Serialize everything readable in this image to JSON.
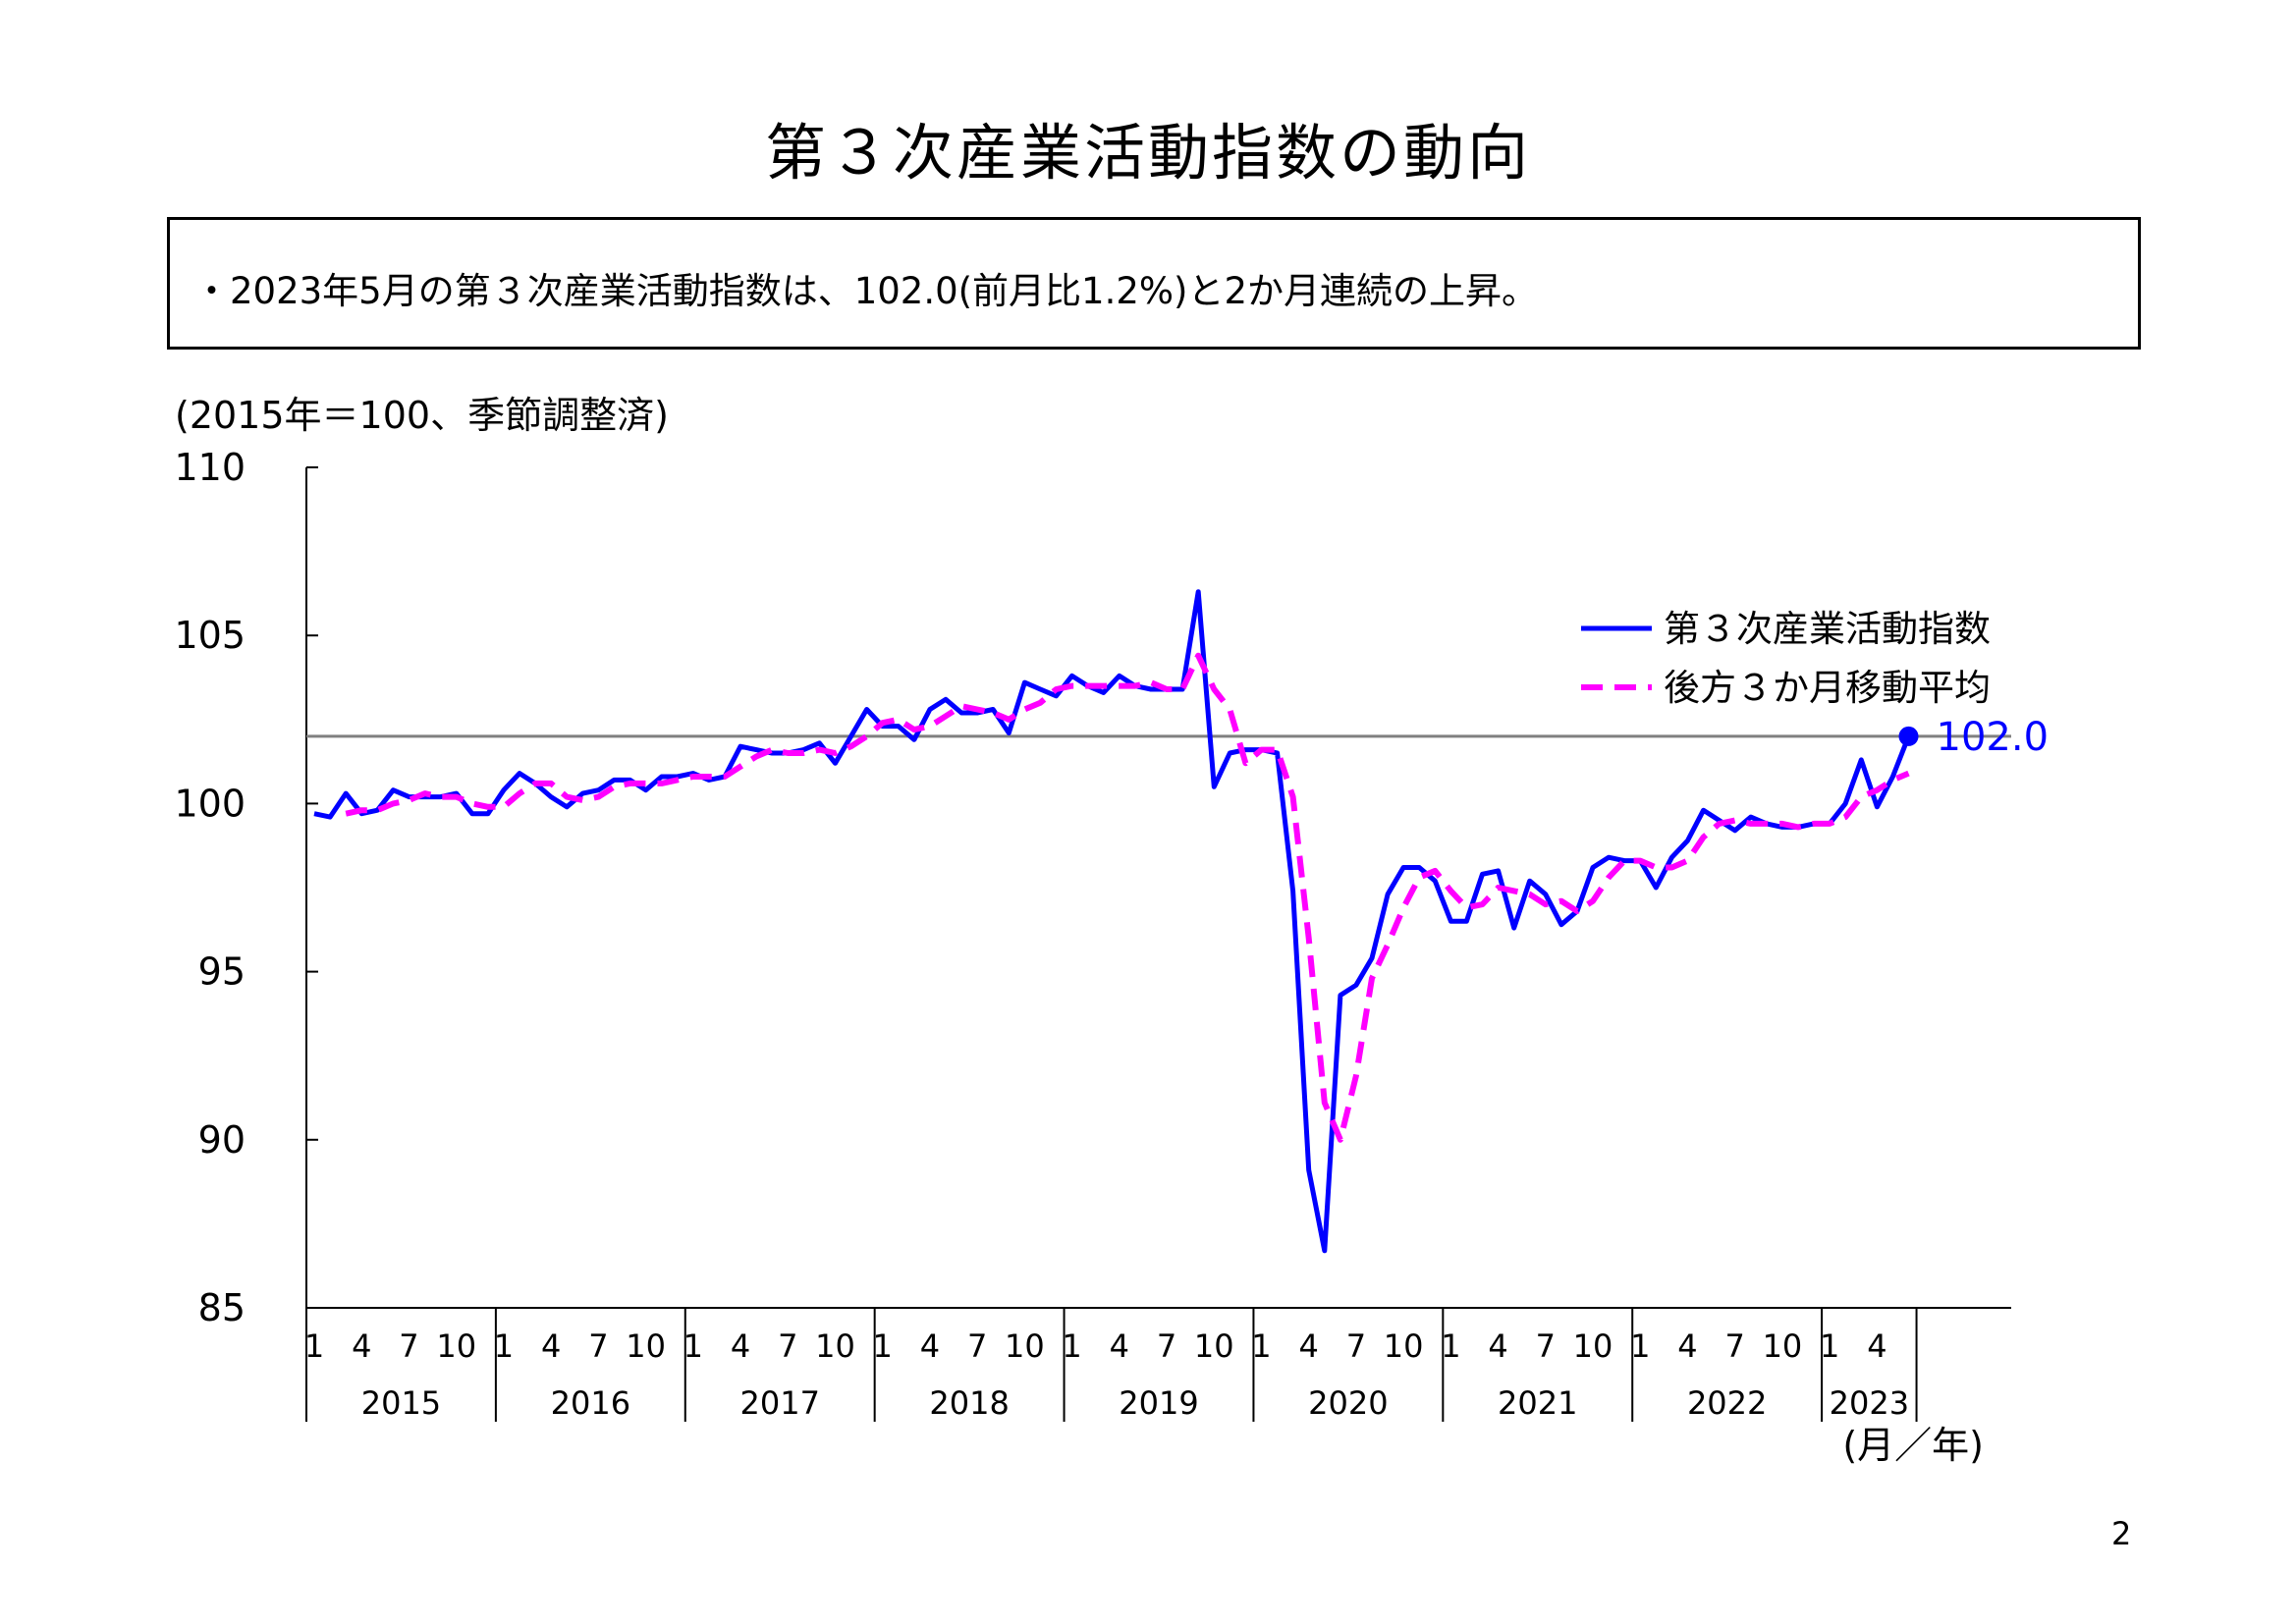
{
  "page": {
    "title": "第３次産業活動指数の動向",
    "summary": "・2023年5月の第３次産業活動指数は、102.0(前月比1.2%)と2か月連続の上昇。",
    "unit_note": "(2015年＝100、季節調整済)",
    "page_number": "2"
  },
  "chart_data": {
    "type": "line",
    "title": "",
    "xlabel": "(月／年)",
    "ylabel": "",
    "ylim": [
      85,
      110
    ],
    "yticks": [
      85,
      90,
      95,
      100,
      105,
      110
    ],
    "grid": false,
    "legend_position": "top-right",
    "x_start": "2015-01",
    "month_ticks": [
      1,
      4,
      7,
      10
    ],
    "years": [
      "2015",
      "2016",
      "2017",
      "2018",
      "2019",
      "2020",
      "2021",
      "2022",
      "2023"
    ],
    "reference_line": {
      "value": 102.0,
      "label": "102.0",
      "color": "#808080"
    },
    "latest_point": {
      "label": "102.0",
      "color": "#0000ff"
    },
    "series": [
      {
        "name": "第３次産業活動指数",
        "color": "#0000ff",
        "style": "solid",
        "values": [
          99.7,
          99.6,
          100.3,
          99.7,
          99.8,
          100.4,
          100.2,
          100.2,
          100.2,
          100.3,
          99.7,
          99.7,
          100.4,
          100.9,
          100.6,
          100.2,
          99.9,
          100.3,
          100.4,
          100.7,
          100.7,
          100.4,
          100.8,
          100.8,
          100.9,
          100.7,
          100.8,
          101.7,
          101.6,
          101.5,
          101.5,
          101.6,
          101.8,
          101.2,
          102.0,
          102.8,
          102.3,
          102.3,
          101.9,
          102.8,
          103.1,
          102.7,
          102.7,
          102.8,
          102.1,
          103.6,
          103.4,
          103.2,
          103.8,
          103.5,
          103.3,
          103.8,
          103.5,
          103.4,
          103.4,
          103.4,
          106.3,
          100.5,
          101.5,
          101.6,
          101.6,
          101.5,
          97.4,
          89.1,
          86.7,
          94.3,
          94.6,
          95.4,
          97.3,
          98.1,
          98.1,
          97.7,
          96.5,
          96.5,
          97.9,
          98.0,
          96.3,
          97.7,
          97.3,
          96.4,
          96.8,
          98.1,
          98.4,
          98.3,
          98.3,
          97.5,
          98.4,
          98.9,
          99.8,
          99.5,
          99.2,
          99.6,
          99.4,
          99.3,
          99.3,
          99.4,
          99.4,
          100.0,
          101.3,
          99.9,
          100.8,
          102.0
        ]
      },
      {
        "name": "後方３か月移動平均",
        "color": "#ff00ff",
        "style": "dashed",
        "values": [
          null,
          null,
          99.7,
          99.8,
          99.8,
          100.0,
          100.1,
          100.3,
          100.2,
          100.2,
          100.0,
          99.9,
          99.9,
          100.3,
          100.6,
          100.6,
          100.2,
          100.1,
          100.2,
          100.5,
          100.6,
          100.6,
          100.6,
          100.7,
          100.8,
          100.8,
          100.8,
          101.1,
          101.4,
          101.6,
          101.5,
          101.5,
          101.6,
          101.5,
          101.7,
          102.0,
          102.4,
          102.5,
          102.2,
          102.3,
          102.6,
          102.9,
          102.8,
          102.7,
          102.5,
          102.8,
          103.0,
          103.4,
          103.5,
          103.5,
          103.5,
          103.5,
          103.5,
          103.6,
          103.4,
          103.4,
          104.4,
          103.4,
          102.8,
          101.2,
          101.6,
          101.6,
          100.2,
          96.0,
          91.1,
          90.0,
          91.9,
          94.8,
          95.8,
          96.9,
          97.8,
          98.0,
          97.4,
          96.9,
          97.0,
          97.5,
          97.4,
          97.3,
          97.0,
          97.1,
          96.8,
          97.1,
          97.8,
          98.3,
          98.3,
          98.1,
          98.1,
          98.3,
          99.0,
          99.4,
          99.5,
          99.4,
          99.4,
          99.4,
          99.3,
          99.4,
          99.4,
          99.6,
          100.2,
          100.4,
          100.7,
          100.9
        ]
      }
    ]
  }
}
